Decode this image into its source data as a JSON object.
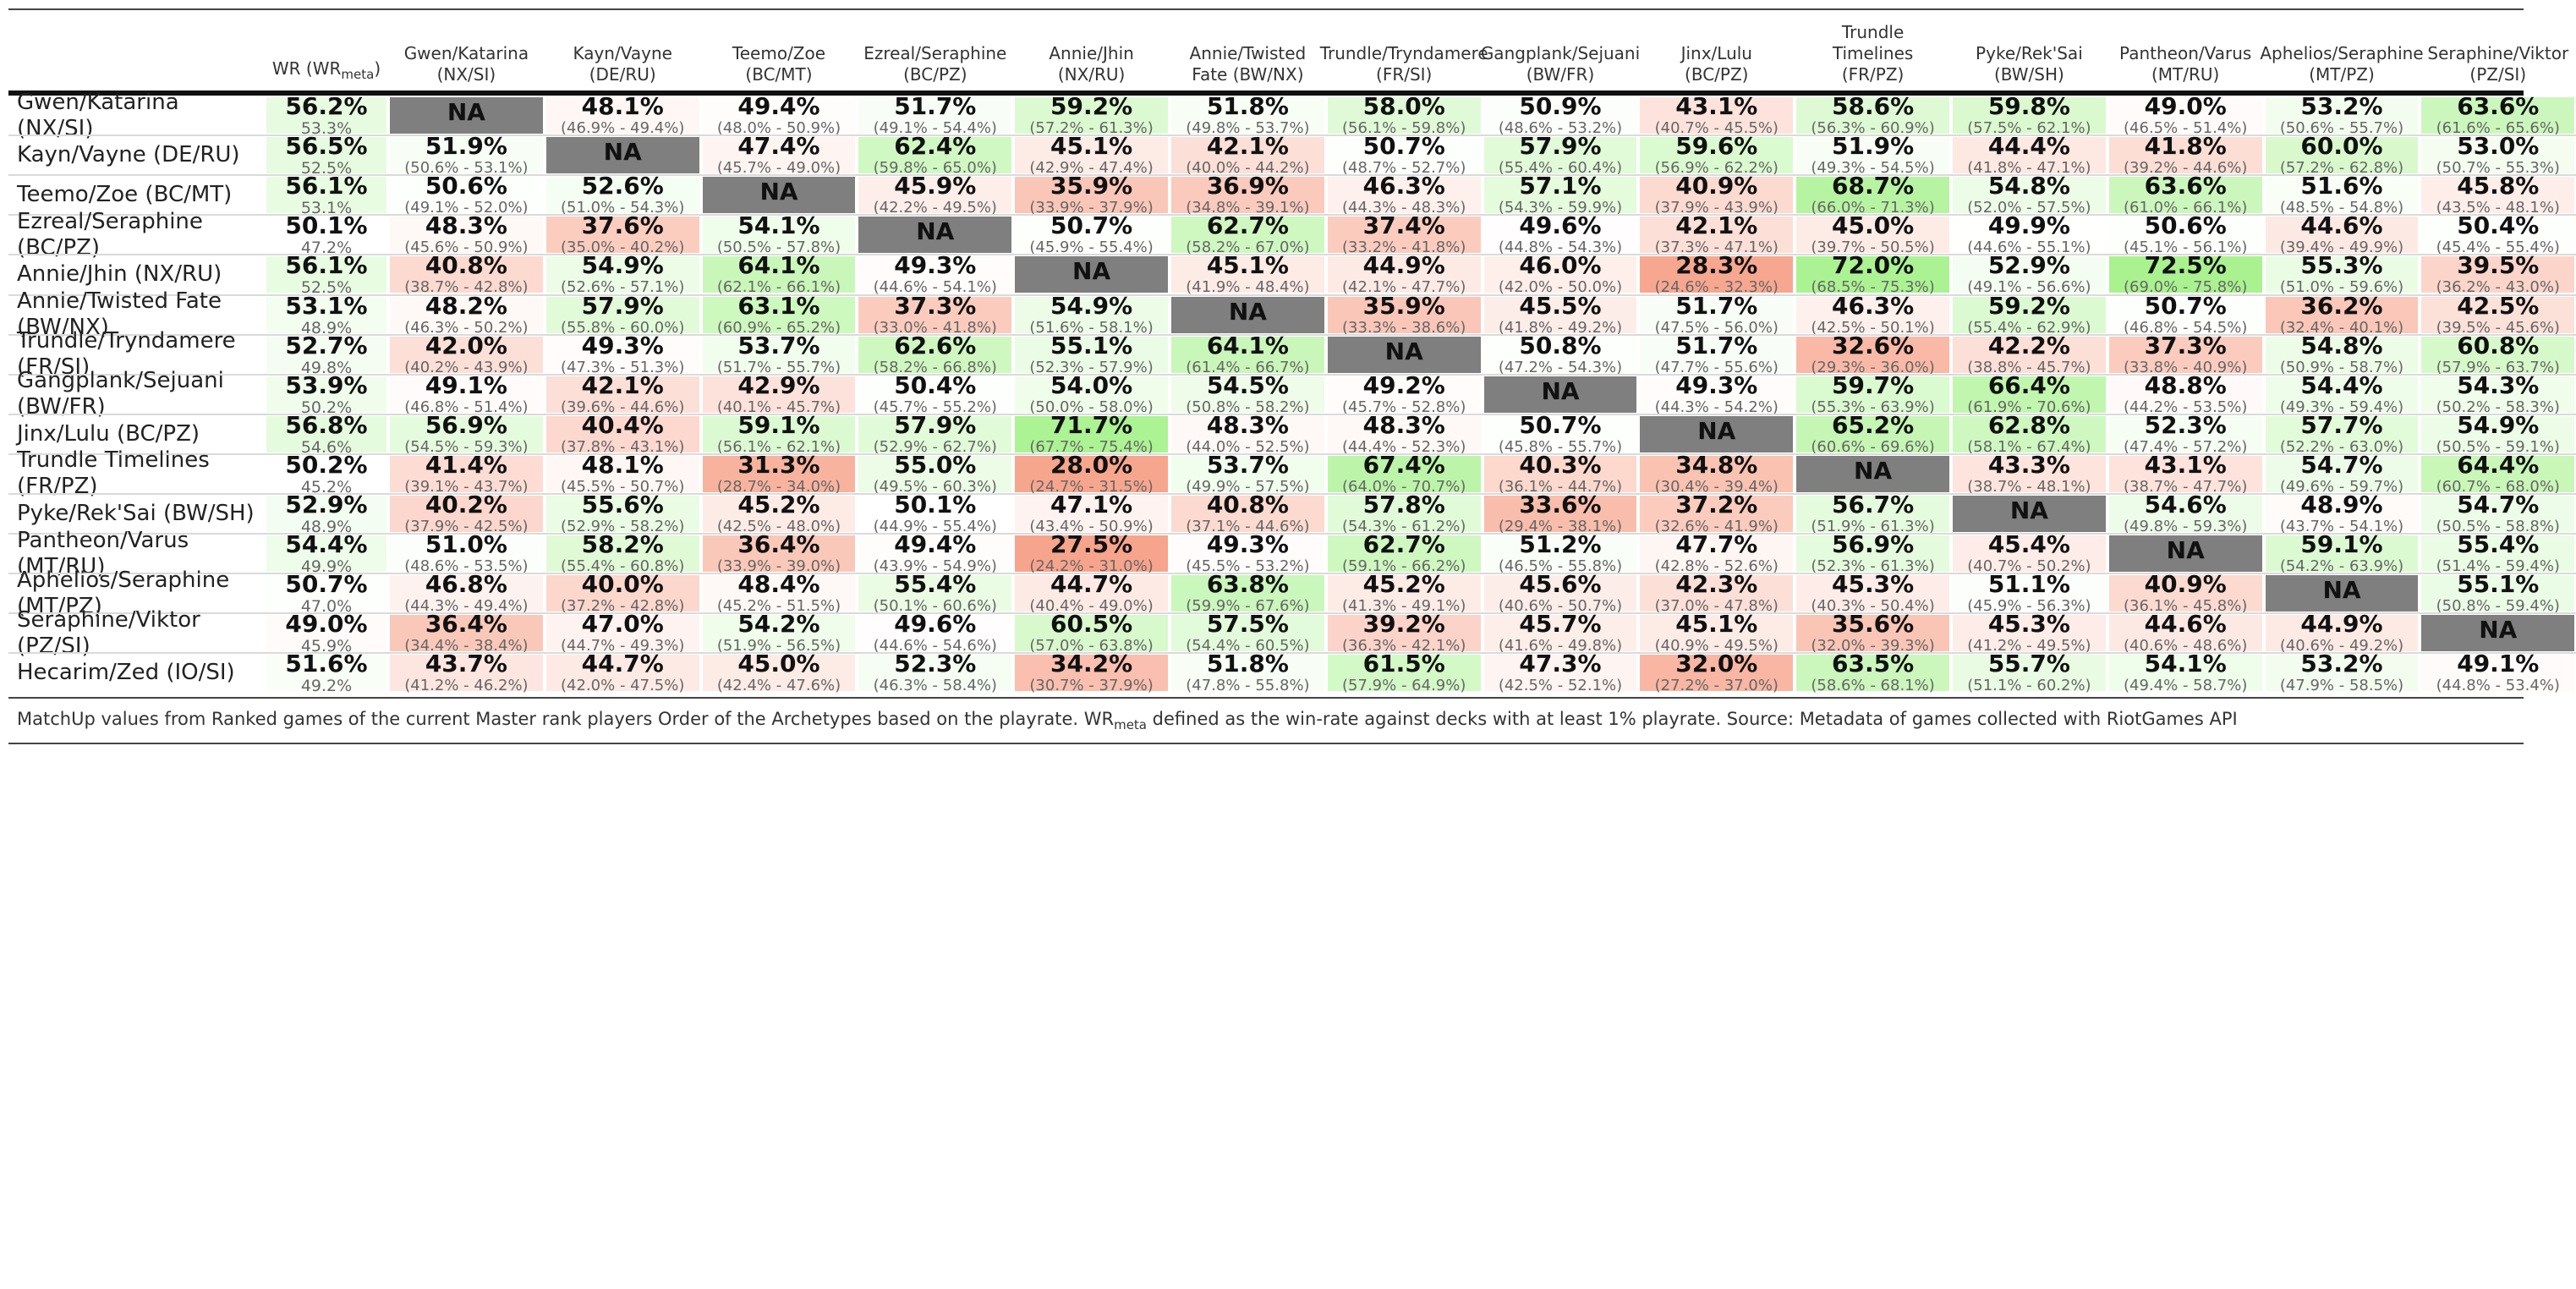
{
  "chart_data": {
    "type": "heatmap",
    "title": "",
    "wr_header": "WR (WR",
    "wr_header_sub": "meta",
    "wr_header_tail": ")",
    "columns": [
      "Gwen/Katarina\n(NX/SI)",
      "Kayn/Vayne\n(DE/RU)",
      "Teemo/Zoe\n(BC/MT)",
      "Ezreal/Seraphine\n(BC/PZ)",
      "Annie/Jhin\n(NX/RU)",
      "Annie/Twisted\nFate (BW/NX)",
      "Trundle/Tryndamere\n(FR/SI)",
      "Gangplank/Sejuani\n(BW/FR)",
      "Jinx/Lulu\n(BC/PZ)",
      "Trundle\nTimelines\n(FR/PZ)",
      "Pyke/Rek'Sai\n(BW/SH)",
      "Pantheon/Varus\n(MT/RU)",
      "Aphelios/Seraphine\n(MT/PZ)",
      "Seraphine/Viktor\n(PZ/SI)"
    ],
    "rows": [
      {
        "name": "Gwen/Katarina\n(NX/SI)",
        "wr": "56.2%",
        "wr_meta": "53.3%",
        "cells": [
          [
            "NA",
            ""
          ],
          [
            "48.1%",
            "(46.9% - 49.4%)"
          ],
          [
            "49.4%",
            "(48.0% - 50.9%)"
          ],
          [
            "51.7%",
            "(49.1% - 54.4%)"
          ],
          [
            "59.2%",
            "(57.2% - 61.3%)"
          ],
          [
            "51.8%",
            "(49.8% - 53.7%)"
          ],
          [
            "58.0%",
            "(56.1% - 59.8%)"
          ],
          [
            "50.9%",
            "(48.6% - 53.2%)"
          ],
          [
            "43.1%",
            "(40.7% - 45.5%)"
          ],
          [
            "58.6%",
            "(56.3% - 60.9%)"
          ],
          [
            "59.8%",
            "(57.5% - 62.1%)"
          ],
          [
            "49.0%",
            "(46.5% - 51.4%)"
          ],
          [
            "53.2%",
            "(50.6% - 55.7%)"
          ],
          [
            "63.6%",
            "(61.6% - 65.6%)"
          ]
        ]
      },
      {
        "name": "Kayn/Vayne (DE/RU)",
        "wr": "56.5%",
        "wr_meta": "52.5%",
        "cells": [
          [
            "51.9%",
            "(50.6% - 53.1%)"
          ],
          [
            "NA",
            ""
          ],
          [
            "47.4%",
            "(45.7% - 49.0%)"
          ],
          [
            "62.4%",
            "(59.8% - 65.0%)"
          ],
          [
            "45.1%",
            "(42.9% - 47.4%)"
          ],
          [
            "42.1%",
            "(40.0% - 44.2%)"
          ],
          [
            "50.7%",
            "(48.7% - 52.7%)"
          ],
          [
            "57.9%",
            "(55.4% - 60.4%)"
          ],
          [
            "59.6%",
            "(56.9% - 62.2%)"
          ],
          [
            "51.9%",
            "(49.3% - 54.5%)"
          ],
          [
            "44.4%",
            "(41.8% - 47.1%)"
          ],
          [
            "41.8%",
            "(39.2% - 44.6%)"
          ],
          [
            "60.0%",
            "(57.2% - 62.8%)"
          ],
          [
            "53.0%",
            "(50.7% - 55.3%)"
          ]
        ]
      },
      {
        "name": "Teemo/Zoe (BC/MT)",
        "wr": "56.1%",
        "wr_meta": "53.1%",
        "cells": [
          [
            "50.6%",
            "(49.1% - 52.0%)"
          ],
          [
            "52.6%",
            "(51.0% - 54.3%)"
          ],
          [
            "NA",
            ""
          ],
          [
            "45.9%",
            "(42.2% - 49.5%)"
          ],
          [
            "35.9%",
            "(33.9% - 37.9%)"
          ],
          [
            "36.9%",
            "(34.8% - 39.1%)"
          ],
          [
            "46.3%",
            "(44.3% - 48.3%)"
          ],
          [
            "57.1%",
            "(54.3% - 59.9%)"
          ],
          [
            "40.9%",
            "(37.9% - 43.9%)"
          ],
          [
            "68.7%",
            "(66.0% - 71.3%)"
          ],
          [
            "54.8%",
            "(52.0% - 57.5%)"
          ],
          [
            "63.6%",
            "(61.0% - 66.1%)"
          ],
          [
            "51.6%",
            "(48.5% - 54.8%)"
          ],
          [
            "45.8%",
            "(43.5% - 48.1%)"
          ]
        ]
      },
      {
        "name": "Ezreal/Seraphine\n(BC/PZ)",
        "wr": "50.1%",
        "wr_meta": "47.2%",
        "cells": [
          [
            "48.3%",
            "(45.6% - 50.9%)"
          ],
          [
            "37.6%",
            "(35.0% - 40.2%)"
          ],
          [
            "54.1%",
            "(50.5% - 57.8%)"
          ],
          [
            "NA",
            ""
          ],
          [
            "50.7%",
            "(45.9% - 55.4%)"
          ],
          [
            "62.7%",
            "(58.2% - 67.0%)"
          ],
          [
            "37.4%",
            "(33.2% - 41.8%)"
          ],
          [
            "49.6%",
            "(44.8% - 54.3%)"
          ],
          [
            "42.1%",
            "(37.3% - 47.1%)"
          ],
          [
            "45.0%",
            "(39.7% - 50.5%)"
          ],
          [
            "49.9%",
            "(44.6% - 55.1%)"
          ],
          [
            "50.6%",
            "(45.1% - 56.1%)"
          ],
          [
            "44.6%",
            "(39.4% - 49.9%)"
          ],
          [
            "50.4%",
            "(45.4% - 55.4%)"
          ]
        ]
      },
      {
        "name": "Annie/Jhin (NX/RU)",
        "wr": "56.1%",
        "wr_meta": "52.5%",
        "cells": [
          [
            "40.8%",
            "(38.7% - 42.8%)"
          ],
          [
            "54.9%",
            "(52.6% - 57.1%)"
          ],
          [
            "64.1%",
            "(62.1% - 66.1%)"
          ],
          [
            "49.3%",
            "(44.6% - 54.1%)"
          ],
          [
            "NA",
            ""
          ],
          [
            "45.1%",
            "(41.9% - 48.4%)"
          ],
          [
            "44.9%",
            "(42.1% - 47.7%)"
          ],
          [
            "46.0%",
            "(42.0% - 50.0%)"
          ],
          [
            "28.3%",
            "(24.6% - 32.3%)"
          ],
          [
            "72.0%",
            "(68.5% - 75.3%)"
          ],
          [
            "52.9%",
            "(49.1% - 56.6%)"
          ],
          [
            "72.5%",
            "(69.0% - 75.8%)"
          ],
          [
            "55.3%",
            "(51.0% - 59.6%)"
          ],
          [
            "39.5%",
            "(36.2% - 43.0%)"
          ]
        ]
      },
      {
        "name": "Annie/Twisted Fate\n(BW/NX)",
        "wr": "53.1%",
        "wr_meta": "48.9%",
        "cells": [
          [
            "48.2%",
            "(46.3% - 50.2%)"
          ],
          [
            "57.9%",
            "(55.8% - 60.0%)"
          ],
          [
            "63.1%",
            "(60.9% - 65.2%)"
          ],
          [
            "37.3%",
            "(33.0% - 41.8%)"
          ],
          [
            "54.9%",
            "(51.6% - 58.1%)"
          ],
          [
            "NA",
            ""
          ],
          [
            "35.9%",
            "(33.3% - 38.6%)"
          ],
          [
            "45.5%",
            "(41.8% - 49.2%)"
          ],
          [
            "51.7%",
            "(47.5% - 56.0%)"
          ],
          [
            "46.3%",
            "(42.5% - 50.1%)"
          ],
          [
            "59.2%",
            "(55.4% - 62.9%)"
          ],
          [
            "50.7%",
            "(46.8% - 54.5%)"
          ],
          [
            "36.2%",
            "(32.4% - 40.1%)"
          ],
          [
            "42.5%",
            "(39.5% - 45.6%)"
          ]
        ]
      },
      {
        "name": "Trundle/Tryndamere\n(FR/SI)",
        "wr": "52.7%",
        "wr_meta": "49.8%",
        "cells": [
          [
            "42.0%",
            "(40.2% - 43.9%)"
          ],
          [
            "49.3%",
            "(47.3% - 51.3%)"
          ],
          [
            "53.7%",
            "(51.7% - 55.7%)"
          ],
          [
            "62.6%",
            "(58.2% - 66.8%)"
          ],
          [
            "55.1%",
            "(52.3% - 57.9%)"
          ],
          [
            "64.1%",
            "(61.4% - 66.7%)"
          ],
          [
            "NA",
            ""
          ],
          [
            "50.8%",
            "(47.2% - 54.3%)"
          ],
          [
            "51.7%",
            "(47.7% - 55.6%)"
          ],
          [
            "32.6%",
            "(29.3% - 36.0%)"
          ],
          [
            "42.2%",
            "(38.8% - 45.7%)"
          ],
          [
            "37.3%",
            "(33.8% - 40.9%)"
          ],
          [
            "54.8%",
            "(50.9% - 58.7%)"
          ],
          [
            "60.8%",
            "(57.9% - 63.7%)"
          ]
        ]
      },
      {
        "name": "Gangplank/Sejuani\n(BW/FR)",
        "wr": "53.9%",
        "wr_meta": "50.2%",
        "cells": [
          [
            "49.1%",
            "(46.8% - 51.4%)"
          ],
          [
            "42.1%",
            "(39.6% - 44.6%)"
          ],
          [
            "42.9%",
            "(40.1% - 45.7%)"
          ],
          [
            "50.4%",
            "(45.7% - 55.2%)"
          ],
          [
            "54.0%",
            "(50.0% - 58.0%)"
          ],
          [
            "54.5%",
            "(50.8% - 58.2%)"
          ],
          [
            "49.2%",
            "(45.7% - 52.8%)"
          ],
          [
            "NA",
            ""
          ],
          [
            "49.3%",
            "(44.3% - 54.2%)"
          ],
          [
            "59.7%",
            "(55.3% - 63.9%)"
          ],
          [
            "66.4%",
            "(61.9% - 70.6%)"
          ],
          [
            "48.8%",
            "(44.2% - 53.5%)"
          ],
          [
            "54.4%",
            "(49.3% - 59.4%)"
          ],
          [
            "54.3%",
            "(50.2% - 58.3%)"
          ]
        ]
      },
      {
        "name": "Jinx/Lulu (BC/PZ)",
        "wr": "56.8%",
        "wr_meta": "54.6%",
        "cells": [
          [
            "56.9%",
            "(54.5% - 59.3%)"
          ],
          [
            "40.4%",
            "(37.8% - 43.1%)"
          ],
          [
            "59.1%",
            "(56.1% - 62.1%)"
          ],
          [
            "57.9%",
            "(52.9% - 62.7%)"
          ],
          [
            "71.7%",
            "(67.7% - 75.4%)"
          ],
          [
            "48.3%",
            "(44.0% - 52.5%)"
          ],
          [
            "48.3%",
            "(44.4% - 52.3%)"
          ],
          [
            "50.7%",
            "(45.8% - 55.7%)"
          ],
          [
            "NA",
            ""
          ],
          [
            "65.2%",
            "(60.6% - 69.6%)"
          ],
          [
            "62.8%",
            "(58.1% - 67.4%)"
          ],
          [
            "52.3%",
            "(47.4% - 57.2%)"
          ],
          [
            "57.7%",
            "(52.2% - 63.0%)"
          ],
          [
            "54.9%",
            "(50.5% - 59.1%)"
          ]
        ]
      },
      {
        "name": "Trundle Timelines\n(FR/PZ)",
        "wr": "50.2%",
        "wr_meta": "45.2%",
        "cells": [
          [
            "41.4%",
            "(39.1% - 43.7%)"
          ],
          [
            "48.1%",
            "(45.5% - 50.7%)"
          ],
          [
            "31.3%",
            "(28.7% - 34.0%)"
          ],
          [
            "55.0%",
            "(49.5% - 60.3%)"
          ],
          [
            "28.0%",
            "(24.7% - 31.5%)"
          ],
          [
            "53.7%",
            "(49.9% - 57.5%)"
          ],
          [
            "67.4%",
            "(64.0% - 70.7%)"
          ],
          [
            "40.3%",
            "(36.1% - 44.7%)"
          ],
          [
            "34.8%",
            "(30.4% - 39.4%)"
          ],
          [
            "NA",
            ""
          ],
          [
            "43.3%",
            "(38.7% - 48.1%)"
          ],
          [
            "43.1%",
            "(38.7% - 47.7%)"
          ],
          [
            "54.7%",
            "(49.6% - 59.7%)"
          ],
          [
            "64.4%",
            "(60.7% - 68.0%)"
          ]
        ]
      },
      {
        "name": "Pyke/Rek'Sai (BW/SH)",
        "wr": "52.9%",
        "wr_meta": "48.9%",
        "cells": [
          [
            "40.2%",
            "(37.9% - 42.5%)"
          ],
          [
            "55.6%",
            "(52.9% - 58.2%)"
          ],
          [
            "45.2%",
            "(42.5% - 48.0%)"
          ],
          [
            "50.1%",
            "(44.9% - 55.4%)"
          ],
          [
            "47.1%",
            "(43.4% - 50.9%)"
          ],
          [
            "40.8%",
            "(37.1% - 44.6%)"
          ],
          [
            "57.8%",
            "(54.3% - 61.2%)"
          ],
          [
            "33.6%",
            "(29.4% - 38.1%)"
          ],
          [
            "37.2%",
            "(32.6% - 41.9%)"
          ],
          [
            "56.7%",
            "(51.9% - 61.3%)"
          ],
          [
            "NA",
            ""
          ],
          [
            "54.6%",
            "(49.8% - 59.3%)"
          ],
          [
            "48.9%",
            "(43.7% - 54.1%)"
          ],
          [
            "54.7%",
            "(50.5% - 58.8%)"
          ]
        ]
      },
      {
        "name": "Pantheon/Varus\n(MT/RU)",
        "wr": "54.4%",
        "wr_meta": "49.9%",
        "cells": [
          [
            "51.0%",
            "(48.6% - 53.5%)"
          ],
          [
            "58.2%",
            "(55.4% - 60.8%)"
          ],
          [
            "36.4%",
            "(33.9% - 39.0%)"
          ],
          [
            "49.4%",
            "(43.9% - 54.9%)"
          ],
          [
            "27.5%",
            "(24.2% - 31.0%)"
          ],
          [
            "49.3%",
            "(45.5% - 53.2%)"
          ],
          [
            "62.7%",
            "(59.1% - 66.2%)"
          ],
          [
            "51.2%",
            "(46.5% - 55.8%)"
          ],
          [
            "47.7%",
            "(42.8% - 52.6%)"
          ],
          [
            "56.9%",
            "(52.3% - 61.3%)"
          ],
          [
            "45.4%",
            "(40.7% - 50.2%)"
          ],
          [
            "NA",
            ""
          ],
          [
            "59.1%",
            "(54.2% - 63.9%)"
          ],
          [
            "55.4%",
            "(51.4% - 59.4%)"
          ]
        ]
      },
      {
        "name": "Aphelios/Seraphine\n(MT/PZ)",
        "wr": "50.7%",
        "wr_meta": "47.0%",
        "cells": [
          [
            "46.8%",
            "(44.3% - 49.4%)"
          ],
          [
            "40.0%",
            "(37.2% - 42.8%)"
          ],
          [
            "48.4%",
            "(45.2% - 51.5%)"
          ],
          [
            "55.4%",
            "(50.1% - 60.6%)"
          ],
          [
            "44.7%",
            "(40.4% - 49.0%)"
          ],
          [
            "63.8%",
            "(59.9% - 67.6%)"
          ],
          [
            "45.2%",
            "(41.3% - 49.1%)"
          ],
          [
            "45.6%",
            "(40.6% - 50.7%)"
          ],
          [
            "42.3%",
            "(37.0% - 47.8%)"
          ],
          [
            "45.3%",
            "(40.3% - 50.4%)"
          ],
          [
            "51.1%",
            "(45.9% - 56.3%)"
          ],
          [
            "40.9%",
            "(36.1% - 45.8%)"
          ],
          [
            "NA",
            ""
          ],
          [
            "55.1%",
            "(50.8% - 59.4%)"
          ]
        ]
      },
      {
        "name": "Seraphine/Viktor\n(PZ/SI)",
        "wr": "49.0%",
        "wr_meta": "45.9%",
        "cells": [
          [
            "36.4%",
            "(34.4% - 38.4%)"
          ],
          [
            "47.0%",
            "(44.7% - 49.3%)"
          ],
          [
            "54.2%",
            "(51.9% - 56.5%)"
          ],
          [
            "49.6%",
            "(44.6% - 54.6%)"
          ],
          [
            "60.5%",
            "(57.0% - 63.8%)"
          ],
          [
            "57.5%",
            "(54.4% - 60.5%)"
          ],
          [
            "39.2%",
            "(36.3% - 42.1%)"
          ],
          [
            "45.7%",
            "(41.6% - 49.8%)"
          ],
          [
            "45.1%",
            "(40.9% - 49.5%)"
          ],
          [
            "35.6%",
            "(32.0% - 39.3%)"
          ],
          [
            "45.3%",
            "(41.2% - 49.5%)"
          ],
          [
            "44.6%",
            "(40.6% - 48.6%)"
          ],
          [
            "44.9%",
            "(40.6% - 49.2%)"
          ],
          [
            "NA",
            ""
          ]
        ]
      },
      {
        "name": "Hecarim/Zed (IO/SI)",
        "wr": "51.6%",
        "wr_meta": "49.2%",
        "cells": [
          [
            "43.7%",
            "(41.2% - 46.2%)"
          ],
          [
            "44.7%",
            "(42.0% - 47.5%)"
          ],
          [
            "45.0%",
            "(42.4% - 47.6%)"
          ],
          [
            "52.3%",
            "(46.3% - 58.4%)"
          ],
          [
            "34.2%",
            "(30.7% - 37.9%)"
          ],
          [
            "51.8%",
            "(47.8% - 55.8%)"
          ],
          [
            "61.5%",
            "(57.9% - 64.9%)"
          ],
          [
            "47.3%",
            "(42.5% - 52.1%)"
          ],
          [
            "32.0%",
            "(27.2% - 37.0%)"
          ],
          [
            "63.5%",
            "(58.6% - 68.1%)"
          ],
          [
            "55.7%",
            "(51.1% - 60.2%)"
          ],
          [
            "54.1%",
            "(49.4% - 58.7%)"
          ],
          [
            "53.2%",
            "(47.9% - 58.5%)"
          ],
          [
            "49.1%",
            "(44.8% - 53.4%)"
          ]
        ]
      }
    ],
    "colors": {
      "na": "#7f7f7f",
      "low": "#f7a289",
      "mid": "#ffffff",
      "high": "#a7f28d"
    }
  },
  "footnote": {
    "before": "MatchUp values from Ranked games of the current Master rank players Order of the Archetypes based on the playrate. WR",
    "sub": "meta",
    "after": " defined as the win-rate against decks with at least 1% playrate. Source: Metadata of games collected with RiotGames API"
  }
}
